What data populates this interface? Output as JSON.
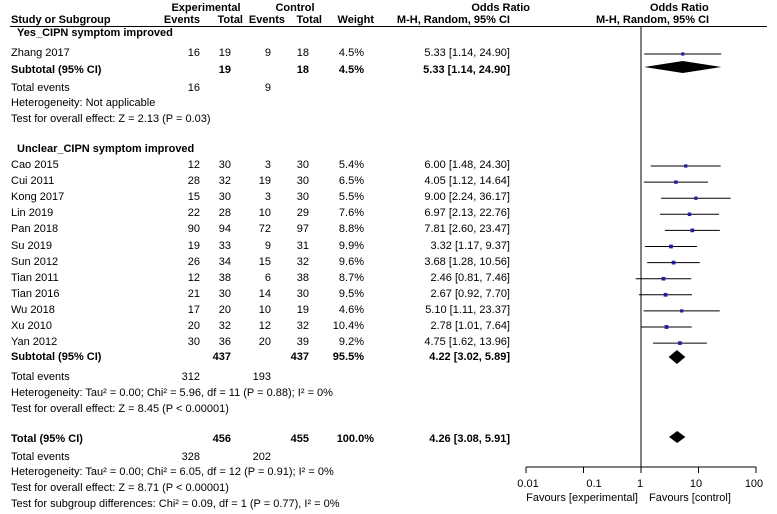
{
  "header": {
    "study": "Study or Subgroup",
    "experimental": "Experimental",
    "control": "Control",
    "events": "Events",
    "total": "Total",
    "weight": "Weight",
    "or_title": "Odds Ratio",
    "or_method": "M-H, Random, 95% CI",
    "plot_title": "Odds Ratio",
    "plot_method": "M-H, Random, 95% CI"
  },
  "subgroups": [
    {
      "title": "Yes_CIPN symptom improved",
      "subtotal_label": "Subtotal (95% CI)",
      "subtotal_exp_total": "19",
      "subtotal_ctl_total": "18",
      "subtotal_weight": "4.5%",
      "subtotal_ci_text": "5.33 [1.14, 24.90]",
      "total_events_label": "Total events",
      "total_exp_events": "16",
      "total_ctl_events": "9",
      "heterogeneity": "Heterogeneity: Not applicable",
      "overall_effect": "Test for overall effect: Z = 2.13 (P = 0.03)"
    },
    {
      "title": "Unclear_CIPN symptom improved",
      "subtotal_label": "Subtotal (95% CI)",
      "subtotal_exp_total": "437",
      "subtotal_ctl_total": "437",
      "subtotal_weight": "95.5%",
      "subtotal_ci_text": "4.22 [3.02, 5.89]",
      "total_events_label": "Total events",
      "total_exp_events": "312",
      "total_ctl_events": "193",
      "heterogeneity": "Heterogeneity: Tau² = 0.00; Chi² = 5.96, df = 11 (P = 0.88); I² = 0%",
      "overall_effect": "Test for overall effect: Z = 8.45 (P < 0.00001)"
    }
  ],
  "studies": [
    {
      "name": "Zhang 2017",
      "e_ev": "16",
      "e_tot": "19",
      "c_ev": "9",
      "c_tot": "18",
      "weight": "4.5%",
      "ci_text": "5.33 [1.14, 24.90]"
    },
    {
      "name": "Cao 2015",
      "e_ev": "12",
      "e_tot": "30",
      "c_ev": "3",
      "c_tot": "30",
      "weight": "5.4%",
      "ci_text": "6.00 [1.48, 24.30]"
    },
    {
      "name": "Cui 2011",
      "e_ev": "28",
      "e_tot": "32",
      "c_ev": "19",
      "c_tot": "30",
      "weight": "6.5%",
      "ci_text": "4.05 [1.12, 14.64]"
    },
    {
      "name": "Kong 2017",
      "e_ev": "15",
      "e_tot": "30",
      "c_ev": "3",
      "c_tot": "30",
      "weight": "5.5%",
      "ci_text": "9.00 [2.24, 36.17]"
    },
    {
      "name": "Lin 2019",
      "e_ev": "22",
      "e_tot": "28",
      "c_ev": "10",
      "c_tot": "29",
      "weight": "7.6%",
      "ci_text": "6.97 [2.13, 22.76]"
    },
    {
      "name": "Pan 2018",
      "e_ev": "90",
      "e_tot": "94",
      "c_ev": "72",
      "c_tot": "97",
      "weight": "8.8%",
      "ci_text": "7.81 [2.60, 23.47]"
    },
    {
      "name": "Su 2019",
      "e_ev": "19",
      "e_tot": "33",
      "c_ev": "9",
      "c_tot": "31",
      "weight": "9.9%",
      "ci_text": "3.32 [1.17, 9.37]"
    },
    {
      "name": "Sun 2012",
      "e_ev": "26",
      "e_tot": "34",
      "c_ev": "15",
      "c_tot": "32",
      "weight": "9.6%",
      "ci_text": "3.68 [1.28, 10.56]"
    },
    {
      "name": "Tian 2011",
      "e_ev": "12",
      "e_tot": "38",
      "c_ev": "6",
      "c_tot": "38",
      "weight": "8.7%",
      "ci_text": "2.46 [0.81, 7.46]"
    },
    {
      "name": "Tian 2016",
      "e_ev": "21",
      "e_tot": "30",
      "c_ev": "14",
      "c_tot": "30",
      "weight": "9.5%",
      "ci_text": "2.67 [0.92, 7.70]"
    },
    {
      "name": "Wu 2018",
      "e_ev": "17",
      "e_tot": "20",
      "c_ev": "10",
      "c_tot": "19",
      "weight": "4.6%",
      "ci_text": "5.10 [1.11, 23.37]"
    },
    {
      "name": "Xu 2010",
      "e_ev": "20",
      "e_tot": "32",
      "c_ev": "12",
      "c_tot": "32",
      "weight": "10.4%",
      "ci_text": "2.78 [1.01, 7.64]"
    },
    {
      "name": "Yan 2012",
      "e_ev": "30",
      "e_tot": "36",
      "c_ev": "20",
      "c_tot": "39",
      "weight": "9.2%",
      "ci_text": "4.75 [1.62, 13.96]"
    }
  ],
  "total": {
    "label": "Total (95% CI)",
    "exp_total": "456",
    "ctl_total": "455",
    "weight": "100.0%",
    "ci_text": "4.26 [3.08, 5.91]",
    "total_events_label": "Total events",
    "exp_events": "328",
    "ctl_events": "202",
    "heterogeneity": "Heterogeneity: Tau² = 0.00; Chi² = 6.05, df = 12 (P = 0.91); I² = 0%",
    "overall_effect": "Test for overall effect: Z = 8.71 (P < 0.00001)",
    "subgroup_diff": "Test for subgroup differences: Chi² = 0.09, df = 1 (P = 0.77), I² = 0%"
  },
  "axis": {
    "ticks": [
      "0.01",
      "0.1",
      "1",
      "10",
      "100"
    ],
    "favours_left": "Favours [experimental]",
    "favours_right": "Favours [control]"
  },
  "colors": {
    "marker": "#1f1fa0",
    "ink": "#000000"
  },
  "chart_data": {
    "type": "forest",
    "title": "Odds Ratio",
    "xlabel": "",
    "x_scale": "log",
    "xlim": [
      0.01,
      100
    ],
    "null_line": 1,
    "grid": false,
    "studies": [
      {
        "name": "Zhang 2017",
        "or": 5.33,
        "lo": 1.14,
        "hi": 24.9,
        "weight": 4.5
      },
      {
        "name": "Cao 2015",
        "or": 6.0,
        "lo": 1.48,
        "hi": 24.3,
        "weight": 5.4
      },
      {
        "name": "Cui 2011",
        "or": 4.05,
        "lo": 1.12,
        "hi": 14.64,
        "weight": 6.5
      },
      {
        "name": "Kong 2017",
        "or": 9.0,
        "lo": 2.24,
        "hi": 36.17,
        "weight": 5.5
      },
      {
        "name": "Lin 2019",
        "or": 6.97,
        "lo": 2.13,
        "hi": 22.76,
        "weight": 7.6
      },
      {
        "name": "Pan 2018",
        "or": 7.81,
        "lo": 2.6,
        "hi": 23.47,
        "weight": 8.8
      },
      {
        "name": "Su 2019",
        "or": 3.32,
        "lo": 1.17,
        "hi": 9.37,
        "weight": 9.9
      },
      {
        "name": "Sun 2012",
        "or": 3.68,
        "lo": 1.28,
        "hi": 10.56,
        "weight": 9.6
      },
      {
        "name": "Tian 2011",
        "or": 2.46,
        "lo": 0.81,
        "hi": 7.46,
        "weight": 8.7
      },
      {
        "name": "Tian 2016",
        "or": 2.67,
        "lo": 0.92,
        "hi": 7.7,
        "weight": 9.5
      },
      {
        "name": "Wu 2018",
        "or": 5.1,
        "lo": 1.11,
        "hi": 23.37,
        "weight": 4.6
      },
      {
        "name": "Xu 2010",
        "or": 2.78,
        "lo": 1.01,
        "hi": 7.64,
        "weight": 10.4
      },
      {
        "name": "Yan 2012",
        "or": 4.75,
        "lo": 1.62,
        "hi": 13.96,
        "weight": 9.2
      }
    ],
    "diamonds": [
      {
        "name": "Yes_CIPN symptom improved subtotal",
        "or": 5.33,
        "lo": 1.14,
        "hi": 24.9
      },
      {
        "name": "Unclear_CIPN symptom improved subtotal",
        "or": 4.22,
        "lo": 3.02,
        "hi": 5.89
      },
      {
        "name": "Total (95% CI)",
        "or": 4.26,
        "lo": 3.08,
        "hi": 5.91
      }
    ]
  }
}
